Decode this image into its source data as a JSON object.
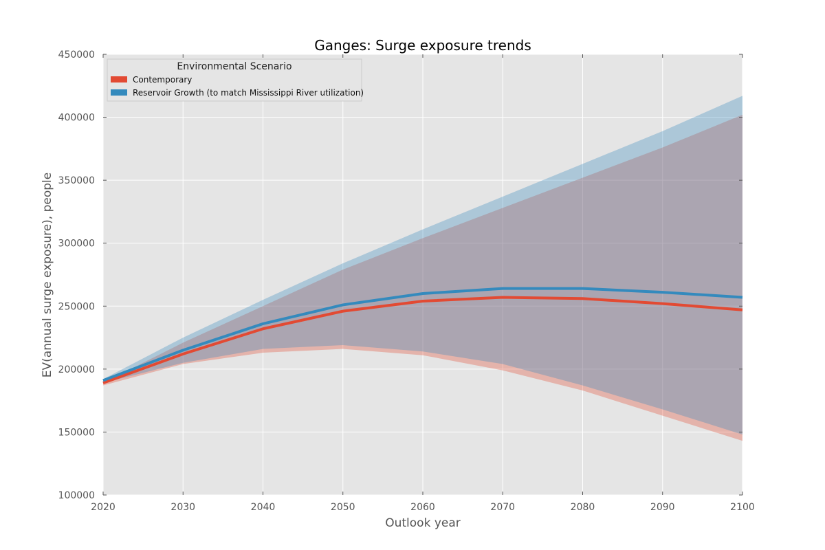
{
  "chart_data": {
    "type": "line",
    "title": "Ganges: Surge exposure trends",
    "xlabel": "Outlook year",
    "ylabel": "EV(annual surge exposure), people",
    "x": [
      2020,
      2030,
      2040,
      2050,
      2060,
      2070,
      2080,
      2090,
      2100
    ],
    "xlim": [
      2020,
      2100
    ],
    "ylim": [
      100000,
      450000
    ],
    "x_ticks": [
      "2020",
      "2030",
      "2040",
      "2050",
      "2060",
      "2070",
      "2080",
      "2090",
      "2100"
    ],
    "y_ticks": [
      "100000",
      "150000",
      "200000",
      "250000",
      "300000",
      "350000",
      "400000",
      "450000"
    ],
    "grid": true,
    "legend_placement": "top-left",
    "legend_title": "Environmental Scenario",
    "series": [
      {
        "name": "Contemporary",
        "color": "#e24a33",
        "values": [
          189000,
          212000,
          232000,
          246000,
          254000,
          257000,
          256000,
          252000,
          247000
        ],
        "band_low": [
          187000,
          204000,
          213000,
          216000,
          211000,
          199000,
          183000,
          163000,
          143000
        ],
        "band_high": [
          189000,
          221000,
          250000,
          279000,
          304000,
          328000,
          352000,
          376000,
          402000
        ]
      },
      {
        "name": "Reservoir Growth (to match Mississippi River utilization)",
        "color": "#348abd",
        "values": [
          191000,
          215000,
          236000,
          251000,
          260000,
          264000,
          264000,
          261000,
          257000
        ],
        "band_low": [
          189000,
          205000,
          216000,
          219000,
          214000,
          204000,
          187000,
          168000,
          148000
        ],
        "band_high": [
          192000,
          225000,
          255000,
          284000,
          311000,
          337000,
          363000,
          389000,
          417000
        ]
      }
    ]
  }
}
